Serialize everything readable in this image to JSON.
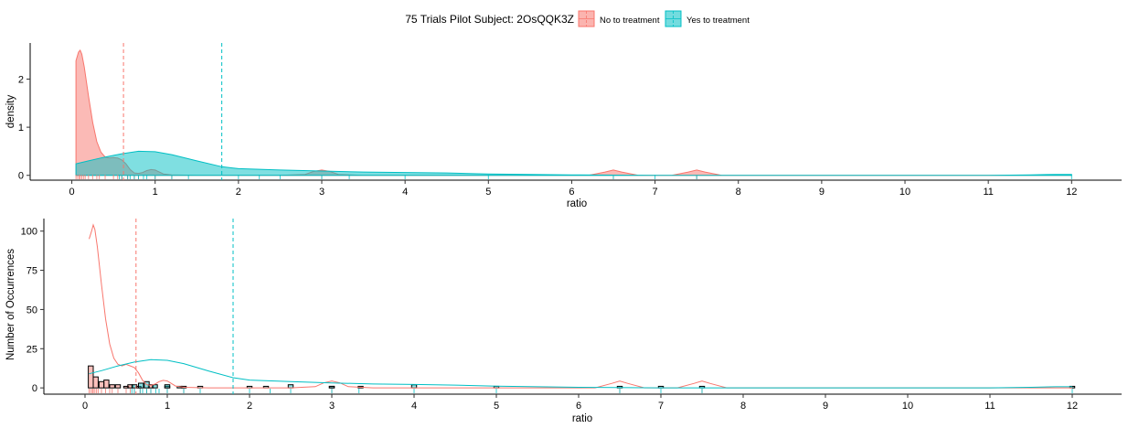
{
  "legend": {
    "title": "75 Trials Pilot Subject:  2OsQQK3Z",
    "items": [
      {
        "label": "No to treatment",
        "color": "#F8766D"
      },
      {
        "label": "Yes to treatment",
        "color": "#00BFC4"
      }
    ]
  },
  "colors": {
    "no": "#F8766D",
    "yes": "#00BFC4"
  },
  "chart_data": [
    {
      "type": "area",
      "subtype": "density",
      "xlabel": "ratio",
      "ylabel": "density",
      "xlim": [
        -0.5,
        12.6
      ],
      "ylim": [
        -0.1,
        2.75
      ],
      "xticks": [
        0,
        1,
        2,
        3,
        4,
        5,
        6,
        7,
        8,
        9,
        10,
        11,
        12
      ],
      "yticks": [
        0,
        1,
        2
      ],
      "grid": false,
      "legend_position": "top",
      "mean_lines": [
        {
          "series": "No to treatment",
          "x": 0.62
        },
        {
          "series": "Yes to treatment",
          "x": 1.8
        }
      ],
      "series": [
        {
          "name": "No to treatment",
          "x": [
            0.05,
            0.08,
            0.1,
            0.12,
            0.15,
            0.2,
            0.25,
            0.3,
            0.35,
            0.4,
            0.45,
            0.5,
            0.55,
            0.6,
            0.65,
            0.7,
            0.75,
            0.8,
            0.85,
            0.9,
            0.95,
            1.0,
            1.05,
            1.1,
            1.2,
            1.5,
            2.0,
            2.5,
            2.8,
            2.9,
            3.0,
            3.1,
            3.2,
            3.5,
            6.2,
            6.4,
            6.5,
            6.6,
            6.8,
            7.2,
            7.4,
            7.5,
            7.6,
            7.8,
            12.0
          ],
          "y": [
            2.38,
            2.56,
            2.6,
            2.52,
            2.25,
            1.65,
            1.1,
            0.7,
            0.48,
            0.38,
            0.36,
            0.37,
            0.36,
            0.32,
            0.24,
            0.12,
            0.05,
            0.04,
            0.06,
            0.1,
            0.12,
            0.11,
            0.07,
            0.03,
            0.01,
            0.0,
            0.0,
            0.0,
            0.02,
            0.08,
            0.11,
            0.08,
            0.02,
            0.0,
            0.0,
            0.07,
            0.11,
            0.07,
            0.0,
            0.0,
            0.07,
            0.11,
            0.07,
            0.0,
            0.0
          ]
        },
        {
          "name": "Yes to treatment",
          "x": [
            0.05,
            0.2,
            0.4,
            0.6,
            0.8,
            1.0,
            1.2,
            1.5,
            1.8,
            2.0,
            2.5,
            3.0,
            3.5,
            4.0,
            4.5,
            5.0,
            6.0,
            7.0,
            8.0,
            9.0,
            10.0,
            11.0,
            11.5,
            11.8,
            12.0
          ],
          "y": [
            0.24,
            0.3,
            0.38,
            0.45,
            0.5,
            0.49,
            0.43,
            0.3,
            0.18,
            0.14,
            0.11,
            0.09,
            0.07,
            0.06,
            0.05,
            0.03,
            0.01,
            0.0,
            0.0,
            0.0,
            0.0,
            0.0,
            0.01,
            0.02,
            0.02
          ]
        }
      ],
      "rug": {
        "No to treatment": [
          0.05,
          0.07,
          0.09,
          0.1,
          0.12,
          0.14,
          0.16,
          0.2,
          0.25,
          0.3,
          0.33,
          0.4,
          0.5,
          0.55,
          0.6,
          0.67,
          0.75,
          0.8,
          1.0,
          1.2,
          3.0,
          6.5,
          7.5
        ],
        "Yes to treatment": [
          0.57,
          0.6,
          0.67,
          0.7,
          0.75,
          0.8,
          0.86,
          0.9,
          1.0,
          1.2,
          1.4,
          2.0,
          2.25,
          2.5,
          3.0,
          3.33,
          4.0,
          5.0,
          6.5,
          7.0,
          7.5,
          12.0
        ]
      }
    },
    {
      "type": "bar",
      "subtype": "histogram",
      "xlabel": "ratio",
      "ylabel": "Number of Occurrences",
      "xlim": [
        -0.5,
        12.6
      ],
      "ylim": [
        -4,
        108
      ],
      "xticks": [
        0,
        1,
        2,
        3,
        4,
        5,
        6,
        7,
        8,
        9,
        10,
        11,
        12
      ],
      "yticks": [
        0,
        25,
        50,
        75,
        100
      ],
      "grid": false,
      "mean_lines": [
        {
          "series": "No to treatment",
          "x": 0.62
        },
        {
          "series": "Yes to treatment",
          "x": 1.8
        }
      ],
      "bin_width": 0.06,
      "series": [
        {
          "name": "No to treatment",
          "bin_centers": [
            0.07,
            0.13,
            0.2,
            0.26,
            0.33,
            0.4,
            0.5,
            0.55,
            0.65,
            0.8,
            1.0,
            1.2,
            3.0
          ],
          "counts": [
            14,
            7,
            4,
            5,
            2,
            2,
            1,
            2,
            1,
            2,
            1,
            1,
            1
          ]
        },
        {
          "name": "Yes to treatment",
          "bin_centers": [
            0.6,
            0.68,
            0.75,
            0.85,
            1.0,
            1.15,
            1.4,
            2.0,
            2.2,
            2.5,
            3.0,
            3.35,
            4.0,
            5.0,
            6.5,
            7.0,
            7.5,
            12.0
          ],
          "counts": [
            2,
            3,
            4,
            2,
            2,
            1,
            1,
            1,
            1,
            2,
            1,
            1,
            2,
            1,
            1,
            1,
            1,
            1
          ]
        }
      ],
      "smooth_curves": [
        {
          "name": "No to treatment",
          "x": [
            0.05,
            0.08,
            0.1,
            0.12,
            0.15,
            0.2,
            0.25,
            0.3,
            0.35,
            0.4,
            0.45,
            0.5,
            0.55,
            0.6,
            0.65,
            0.7,
            0.75,
            0.8,
            0.85,
            0.9,
            0.95,
            1.0,
            1.05,
            1.1,
            1.2,
            1.5,
            2.0,
            2.5,
            2.8,
            2.9,
            3.0,
            3.1,
            3.2,
            3.5,
            6.2,
            6.4,
            6.5,
            6.6,
            6.8,
            7.2,
            7.4,
            7.5,
            7.6,
            7.8,
            12.0
          ],
          "y": [
            95,
            100,
            104,
            101,
            90,
            66,
            44,
            28,
            19,
            15,
            14,
            15,
            14,
            13,
            9.6,
            4.8,
            2,
            1.6,
            2.4,
            4,
            4.8,
            4.4,
            2.8,
            1.2,
            0.4,
            0,
            0,
            0,
            0.8,
            3.2,
            4.4,
            3.2,
            0.8,
            0,
            0,
            2.8,
            4.4,
            2.8,
            0,
            0,
            2.8,
            4.4,
            2.8,
            0,
            0
          ]
        },
        {
          "name": "Yes to treatment",
          "x": [
            0.05,
            0.2,
            0.4,
            0.6,
            0.8,
            1.0,
            1.2,
            1.5,
            1.8,
            2.0,
            2.5,
            3.0,
            3.5,
            4.0,
            4.5,
            5.0,
            6.0,
            7.0,
            8.0,
            9.0,
            10.0,
            11.0,
            11.5,
            11.8,
            12.0
          ],
          "y": [
            9,
            11,
            14,
            16.5,
            18,
            17.6,
            15.5,
            10.8,
            6.5,
            5,
            4,
            3.2,
            2.5,
            2.2,
            1.8,
            1.1,
            0.4,
            0,
            0,
            0,
            0,
            0,
            0.4,
            0.7,
            0.7
          ]
        }
      ],
      "rug": {
        "No to treatment": [
          0.05,
          0.07,
          0.09,
          0.1,
          0.12,
          0.14,
          0.16,
          0.2,
          0.25,
          0.3,
          0.33,
          0.4,
          0.5,
          0.55,
          0.6,
          0.67,
          0.75,
          0.8,
          1.0,
          1.2,
          3.0,
          6.5,
          7.5
        ],
        "Yes to treatment": [
          0.57,
          0.6,
          0.67,
          0.7,
          0.75,
          0.8,
          0.86,
          0.9,
          1.0,
          1.2,
          1.4,
          2.0,
          2.25,
          2.5,
          3.0,
          3.33,
          4.0,
          5.0,
          6.5,
          7.0,
          7.5,
          12.0
        ]
      }
    }
  ]
}
